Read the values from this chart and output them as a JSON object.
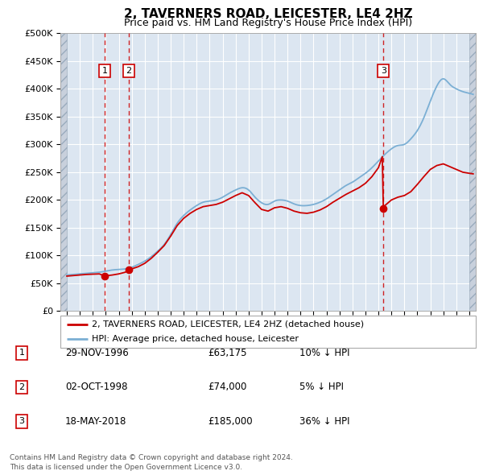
{
  "title": "2, TAVERNERS ROAD, LEICESTER, LE4 2HZ",
  "subtitle": "Price paid vs. HM Land Registry's House Price Index (HPI)",
  "legend_label_red": "2, TAVERNERS ROAD, LEICESTER, LE4 2HZ (detached house)",
  "legend_label_blue": "HPI: Average price, detached house, Leicester",
  "footer_line1": "Contains HM Land Registry data © Crown copyright and database right 2024.",
  "footer_line2": "This data is licensed under the Open Government Licence v3.0.",
  "transactions": [
    {
      "num": 1,
      "date": "29-NOV-1996",
      "price": "£63,175",
      "hpi": "10% ↓ HPI",
      "year": 1996.91,
      "price_val": 63175
    },
    {
      "num": 2,
      "date": "02-OCT-1998",
      "price": "£74,000",
      "hpi": "5% ↓ HPI",
      "year": 1998.75,
      "price_val": 74000
    },
    {
      "num": 3,
      "date": "18-MAY-2018",
      "price": "£185,000",
      "hpi": "36% ↓ HPI",
      "year": 2018.38,
      "price_val": 185000
    }
  ],
  "ylim": [
    0,
    500000
  ],
  "yticks": [
    0,
    50000,
    100000,
    150000,
    200000,
    250000,
    300000,
    350000,
    400000,
    450000,
    500000
  ],
  "ytick_labels": [
    "£0",
    "£50K",
    "£100K",
    "£150K",
    "£200K",
    "£250K",
    "£300K",
    "£350K",
    "£400K",
    "£450K",
    "£500K"
  ],
  "xlim_start": 1993.5,
  "xlim_end": 2025.5,
  "background_color": "#ffffff",
  "plot_bg_color": "#dce6f1",
  "hatch_color": "#c8d0dc",
  "grid_color": "#ffffff",
  "red_color": "#cc0000",
  "blue_color": "#7bafd4",
  "border_color": "#aaaaaa"
}
